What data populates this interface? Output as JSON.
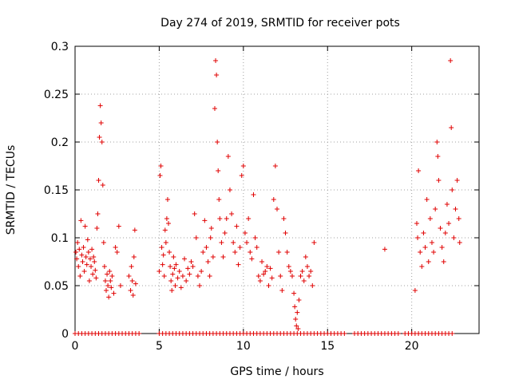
{
  "chart_data": {
    "type": "scatter",
    "title": "Day 274 of 2019, SRMTID for receiver pots",
    "xlabel": "GPS time / hours",
    "ylabel": "SRMTID / TECUs",
    "xlim": [
      0,
      24
    ],
    "ylim": [
      0,
      0.3
    ],
    "xticks": [
      0,
      5,
      10,
      15,
      20
    ],
    "yticks": [
      0,
      0.05,
      0.1,
      0.15,
      0.2,
      0.25,
      0.3
    ],
    "x_tick_labels": [
      "0",
      "5",
      "10",
      "15",
      "20"
    ],
    "y_tick_labels": [
      "0",
      "0.05",
      "0.1",
      "0.15",
      "0.2",
      "0.25",
      "0.3"
    ],
    "grid": true,
    "marker": "plus",
    "series_color": "#e00000",
    "series": [
      {
        "values": [
          [
            0.05,
            0.085
          ],
          [
            0.1,
            0.078
          ],
          [
            0.15,
            0.095
          ],
          [
            0.2,
            0.07
          ],
          [
            0.25,
            0.088
          ],
          [
            0.3,
            0.06
          ],
          [
            0.35,
            0.118
          ],
          [
            0.4,
            0.082
          ],
          [
            0.45,
            0.075
          ],
          [
            0.5,
            0.09
          ],
          [
            0.55,
            0.065
          ],
          [
            0.6,
            0.112
          ],
          [
            0.65,
            0.08
          ],
          [
            0.7,
            0.072
          ],
          [
            0.75,
            0.098
          ],
          [
            0.8,
            0.085
          ],
          [
            0.85,
            0.055
          ],
          [
            0.9,
            0.078
          ],
          [
            0.95,
            0.07
          ],
          [
            1.0,
            0.088
          ],
          [
            1.05,
            0.062
          ],
          [
            1.1,
            0.08
          ],
          [
            1.15,
            0.075
          ],
          [
            1.2,
            0.066
          ],
          [
            1.25,
            0.058
          ],
          [
            1.3,
            0.11
          ],
          [
            1.35,
            0.125
          ],
          [
            1.4,
            0.16
          ],
          [
            1.45,
            0.205
          ],
          [
            1.5,
            0.238
          ],
          [
            1.55,
            0.22
          ],
          [
            1.6,
            0.2
          ],
          [
            1.65,
            0.155
          ],
          [
            1.7,
            0.095
          ],
          [
            1.75,
            0.07
          ],
          [
            1.8,
            0.055
          ],
          [
            1.85,
            0.045
          ],
          [
            1.9,
            0.062
          ],
          [
            1.95,
            0.05
          ],
          [
            2.0,
            0.038
          ],
          [
            2.05,
            0.065
          ],
          [
            2.1,
            0.055
          ],
          [
            2.15,
            0.048
          ],
          [
            2.2,
            0.06
          ],
          [
            2.3,
            0.042
          ],
          [
            2.4,
            0.09
          ],
          [
            2.5,
            0.085
          ],
          [
            2.6,
            0.112
          ],
          [
            2.7,
            0.05
          ],
          [
            3.2,
            0.06
          ],
          [
            3.3,
            0.045
          ],
          [
            3.35,
            0.07
          ],
          [
            3.4,
            0.055
          ],
          [
            3.45,
            0.04
          ],
          [
            3.5,
            0.08
          ],
          [
            3.55,
            0.108
          ],
          [
            3.6,
            0.052
          ],
          [
            5.0,
            0.065
          ],
          [
            5.05,
            0.165
          ],
          [
            5.1,
            0.175
          ],
          [
            5.15,
            0.09
          ],
          [
            5.2,
            0.072
          ],
          [
            5.25,
            0.082
          ],
          [
            5.3,
            0.06
          ],
          [
            5.35,
            0.108
          ],
          [
            5.4,
            0.095
          ],
          [
            5.45,
            0.12
          ],
          [
            5.5,
            0.14
          ],
          [
            5.55,
            0.115
          ],
          [
            5.6,
            0.085
          ],
          [
            5.65,
            0.07
          ],
          [
            5.7,
            0.055
          ],
          [
            5.75,
            0.045
          ],
          [
            5.8,
            0.062
          ],
          [
            5.85,
            0.08
          ],
          [
            5.9,
            0.068
          ],
          [
            5.95,
            0.05
          ],
          [
            6.0,
            0.072
          ],
          [
            6.1,
            0.058
          ],
          [
            6.2,
            0.065
          ],
          [
            6.3,
            0.048
          ],
          [
            6.4,
            0.06
          ],
          [
            6.5,
            0.078
          ],
          [
            6.6,
            0.055
          ],
          [
            6.7,
            0.068
          ],
          [
            6.8,
            0.062
          ],
          [
            6.9,
            0.075
          ],
          [
            7.0,
            0.07
          ],
          [
            7.1,
            0.125
          ],
          [
            7.2,
            0.1
          ],
          [
            7.3,
            0.06
          ],
          [
            7.4,
            0.05
          ],
          [
            7.5,
            0.065
          ],
          [
            7.6,
            0.085
          ],
          [
            7.7,
            0.118
          ],
          [
            7.8,
            0.09
          ],
          [
            7.9,
            0.075
          ],
          [
            8.0,
            0.06
          ],
          [
            8.05,
            0.1
          ],
          [
            8.1,
            0.11
          ],
          [
            8.2,
            0.08
          ],
          [
            8.3,
            0.235
          ],
          [
            8.35,
            0.285
          ],
          [
            8.4,
            0.27
          ],
          [
            8.45,
            0.2
          ],
          [
            8.5,
            0.17
          ],
          [
            8.55,
            0.14
          ],
          [
            8.6,
            0.12
          ],
          [
            8.7,
            0.095
          ],
          [
            8.8,
            0.08
          ],
          [
            8.9,
            0.105
          ],
          [
            9.0,
            0.12
          ],
          [
            9.1,
            0.185
          ],
          [
            9.2,
            0.15
          ],
          [
            9.3,
            0.125
          ],
          [
            9.4,
            0.095
          ],
          [
            9.5,
            0.085
          ],
          [
            9.6,
            0.112
          ],
          [
            9.7,
            0.072
          ],
          [
            9.8,
            0.09
          ],
          [
            9.9,
            0.165
          ],
          [
            10.0,
            0.175
          ],
          [
            10.1,
            0.105
          ],
          [
            10.2,
            0.095
          ],
          [
            10.3,
            0.12
          ],
          [
            10.4,
            0.085
          ],
          [
            10.5,
            0.078
          ],
          [
            10.6,
            0.145
          ],
          [
            10.7,
            0.1
          ],
          [
            10.8,
            0.09
          ],
          [
            10.9,
            0.06
          ],
          [
            11.0,
            0.055
          ],
          [
            11.1,
            0.075
          ],
          [
            11.2,
            0.062
          ],
          [
            11.3,
            0.065
          ],
          [
            11.4,
            0.07
          ],
          [
            11.5,
            0.05
          ],
          [
            11.6,
            0.068
          ],
          [
            11.7,
            0.058
          ],
          [
            11.8,
            0.14
          ],
          [
            11.9,
            0.175
          ],
          [
            12.0,
            0.13
          ],
          [
            12.1,
            0.085
          ],
          [
            12.2,
            0.06
          ],
          [
            12.3,
            0.045
          ],
          [
            12.4,
            0.12
          ],
          [
            12.5,
            0.105
          ],
          [
            12.6,
            0.085
          ],
          [
            12.7,
            0.07
          ],
          [
            12.8,
            0.065
          ],
          [
            12.9,
            0.06
          ],
          [
            13.0,
            0.042
          ],
          [
            13.05,
            0.028
          ],
          [
            13.1,
            0.015
          ],
          [
            13.15,
            0.008
          ],
          [
            13.2,
            0.022
          ],
          [
            13.25,
            0.005
          ],
          [
            13.3,
            0.035
          ],
          [
            13.4,
            0.06
          ],
          [
            13.5,
            0.065
          ],
          [
            13.6,
            0.055
          ],
          [
            13.7,
            0.08
          ],
          [
            13.8,
            0.07
          ],
          [
            13.9,
            0.06
          ],
          [
            14.0,
            0.065
          ],
          [
            14.1,
            0.05
          ],
          [
            14.2,
            0.095
          ],
          [
            18.4,
            0.088
          ],
          [
            20.2,
            0.045
          ],
          [
            20.3,
            0.115
          ],
          [
            20.35,
            0.1
          ],
          [
            20.4,
            0.17
          ],
          [
            20.5,
            0.085
          ],
          [
            20.6,
            0.07
          ],
          [
            20.7,
            0.105
          ],
          [
            20.8,
            0.09
          ],
          [
            20.9,
            0.14
          ],
          [
            21.0,
            0.075
          ],
          [
            21.1,
            0.12
          ],
          [
            21.2,
            0.095
          ],
          [
            21.3,
            0.085
          ],
          [
            21.4,
            0.13
          ],
          [
            21.5,
            0.2
          ],
          [
            21.55,
            0.185
          ],
          [
            21.6,
            0.16
          ],
          [
            21.7,
            0.11
          ],
          [
            21.8,
            0.09
          ],
          [
            21.9,
            0.075
          ],
          [
            22.0,
            0.105
          ],
          [
            22.1,
            0.135
          ],
          [
            22.2,
            0.115
          ],
          [
            22.3,
            0.285
          ],
          [
            22.35,
            0.215
          ],
          [
            22.4,
            0.15
          ],
          [
            22.5,
            0.1
          ],
          [
            22.6,
            0.13
          ],
          [
            22.7,
            0.16
          ],
          [
            22.8,
            0.12
          ],
          [
            22.85,
            0.095
          ]
        ],
        "zeros": [
          0.0,
          0.2,
          0.4,
          0.6,
          0.8,
          1.0,
          1.2,
          1.4,
          1.6,
          1.8,
          2.0,
          2.2,
          2.4,
          2.6,
          2.8,
          3.0,
          3.2,
          3.4,
          3.6,
          3.8,
          5.0,
          5.2,
          5.4,
          5.6,
          5.8,
          6.0,
          6.2,
          6.4,
          6.6,
          6.8,
          7.0,
          7.2,
          7.4,
          7.6,
          7.8,
          8.0,
          8.2,
          8.4,
          8.6,
          8.8,
          9.0,
          9.2,
          9.4,
          9.6,
          9.8,
          10.0,
          10.2,
          10.4,
          10.6,
          10.8,
          11.0,
          11.2,
          11.4,
          11.6,
          11.8,
          12.0,
          12.2,
          12.4,
          12.6,
          12.8,
          13.0,
          13.2,
          13.4,
          13.6,
          13.8,
          14.0,
          14.2,
          14.4,
          14.6,
          14.8,
          15.0,
          15.2,
          15.4,
          15.6,
          15.8,
          16.0,
          16.6,
          16.8,
          17.0,
          17.2,
          17.4,
          17.6,
          17.8,
          18.0,
          18.2,
          18.4,
          18.6,
          18.8,
          19.0,
          19.2,
          19.6,
          19.8,
          20.0,
          20.2,
          20.4,
          20.6,
          20.8,
          21.0,
          21.2,
          21.4,
          21.6,
          21.8,
          22.0,
          22.2,
          22.4
        ]
      }
    ]
  }
}
